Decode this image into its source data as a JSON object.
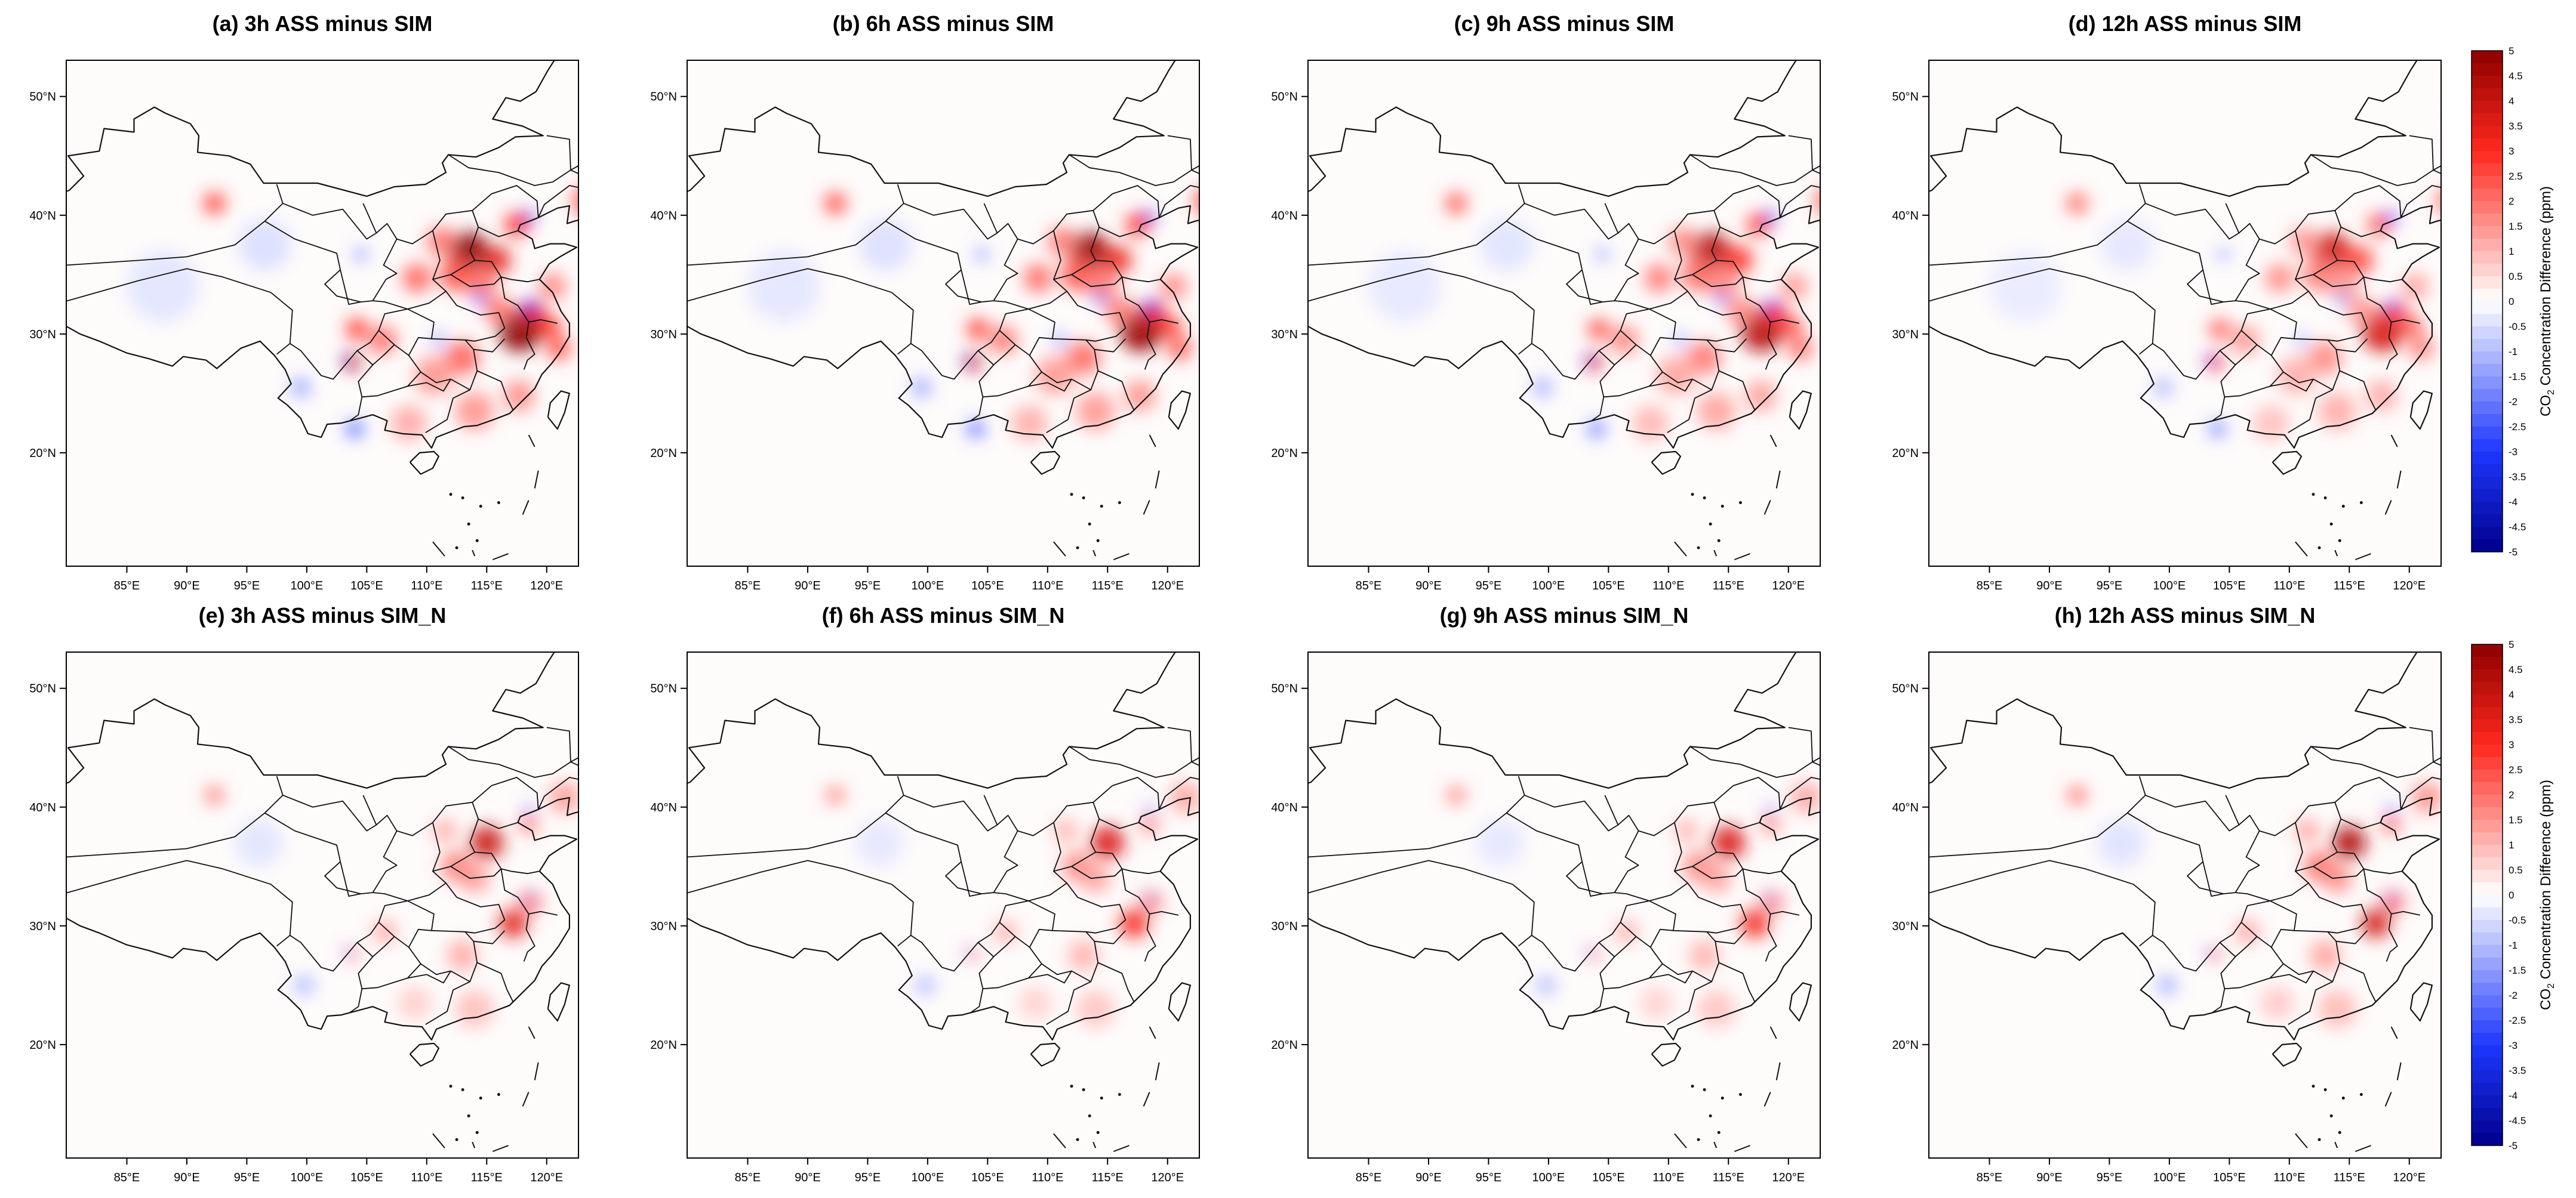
{
  "figure": {
    "panels": [
      {
        "title": "(a) 3h ASS minus SIM",
        "intensity": 1.0
      },
      {
        "title": "(b) 6h ASS minus SIM",
        "intensity": 0.95
      },
      {
        "title": "(c) 9h ASS minus SIM",
        "intensity": 0.85
      },
      {
        "title": "(d) 12h ASS minus SIM",
        "intensity": 0.75
      },
      {
        "title": "(e) 3h ASS minus SIM_N",
        "intensity": 0.55
      },
      {
        "title": "(f) 6h ASS minus SIM_N",
        "intensity": 0.5
      },
      {
        "title": "(g) 9h ASS minus SIM_N",
        "intensity": 0.5
      },
      {
        "title": "(h) 12h ASS minus SIM_N",
        "intensity": 0.6
      }
    ],
    "x_ticks": [
      "85°E",
      "90°E",
      "95°E",
      "100°E",
      "105°E",
      "110°E",
      "115°E",
      "120°E"
    ],
    "y_ticks": [
      "50°N",
      "40°N",
      "30°N",
      "20°N"
    ],
    "colorbar": {
      "label_prefix": "CO",
      "label_subscript": "2",
      "label_suffix": " Concentration Difference (ppm)",
      "ticks": [
        "5",
        "4.5",
        "4",
        "3.5",
        "3",
        "2.5",
        "2",
        "1.5",
        "1",
        "0.5",
        "0",
        "-0.5",
        "-1",
        "-1.5",
        "-2",
        "-2.5",
        "-3",
        "-3.5",
        "-4",
        "-4.5",
        "-5"
      ],
      "colors": {
        "max": "#8b0000",
        "mid": "#ffffff",
        "min": "#00008b"
      }
    }
  }
}
